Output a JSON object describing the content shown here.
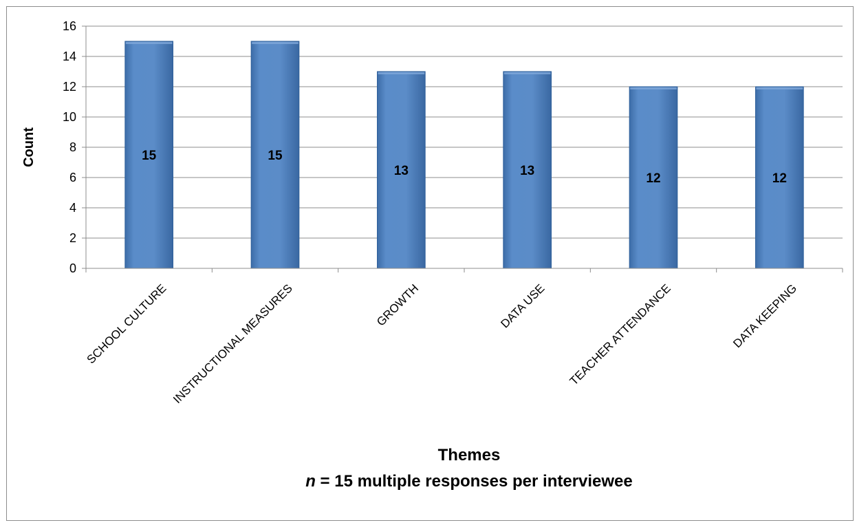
{
  "chart_data": {
    "type": "bar",
    "categories": [
      "SCHOOL CULTURE",
      "INSTRUCTIONAL MEASURES",
      "GROWTH",
      "DATA USE",
      "TEACHER ATTENDANCE",
      "DATA KEEPING"
    ],
    "values": [
      15,
      15,
      13,
      13,
      12,
      12
    ],
    "data_labels": [
      "15",
      "15",
      "13",
      "13",
      "12",
      "12"
    ],
    "title": "",
    "xlabel": "Themes",
    "xlabel_note": {
      "italic_part": "n",
      "rest": " = 15 multiple responses per interviewee"
    },
    "ylabel": "Count",
    "ylim": [
      0,
      16
    ],
    "yticks": [
      0,
      2,
      4,
      6,
      8,
      10,
      12,
      14,
      16
    ],
    "grid": true,
    "legend": "none",
    "bar_color": "#4f81bd",
    "bar_edge_color": "#2e5f9a"
  }
}
